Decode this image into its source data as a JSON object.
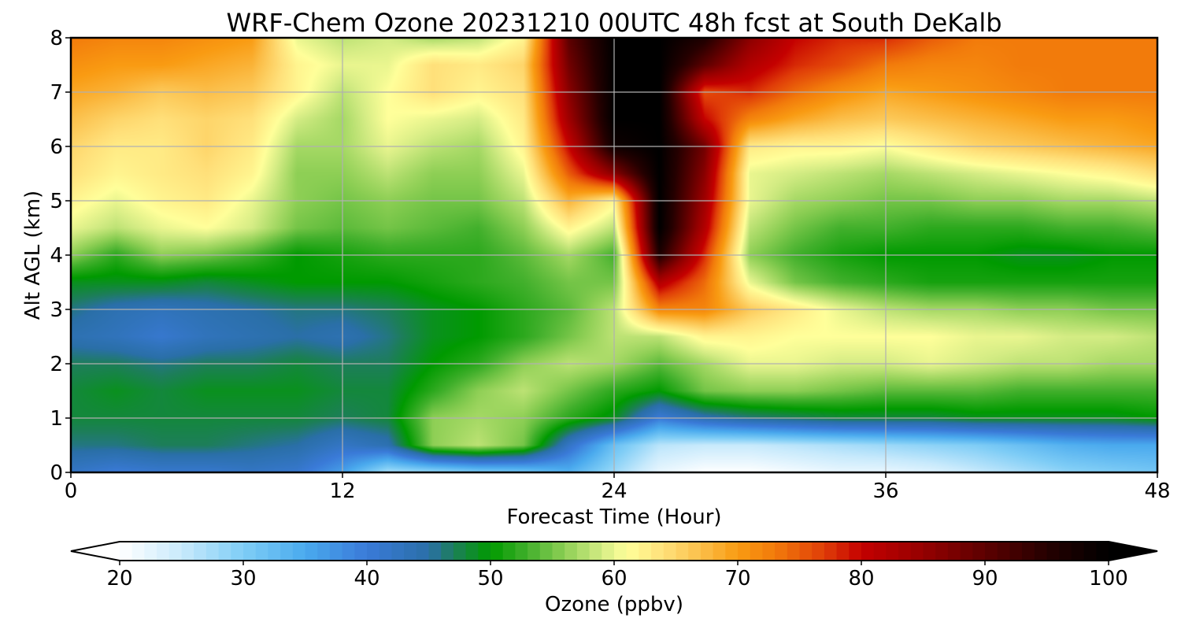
{
  "chart_data": {
    "type": "heatmap",
    "title": "WRF-Chem Ozone  20231210 00UTC 48h fcst at South DeKalb",
    "xlabel": "Forecast Time (Hour)",
    "ylabel": "Alt AGL (km)",
    "xlim": [
      0,
      48
    ],
    "ylim": [
      0,
      8
    ],
    "xticks": [
      0,
      12,
      24,
      36,
      48
    ],
    "yticks": [
      0,
      1,
      2,
      3,
      4,
      5,
      6,
      7,
      8
    ],
    "grid": true,
    "x": [
      0,
      2,
      4,
      6,
      8,
      10,
      12,
      14,
      16,
      18,
      20,
      22,
      24,
      26,
      28,
      30,
      32,
      34,
      36,
      38,
      40,
      42,
      44,
      46,
      48
    ],
    "y": [
      0,
      0.5,
      1,
      1.5,
      2,
      2.5,
      3,
      3.5,
      4,
      4.5,
      5,
      5.5,
      6,
      6.5,
      7,
      7.5,
      8
    ],
    "z": [
      [
        42,
        40,
        41,
        41,
        42,
        41,
        36,
        27,
        28,
        30,
        31,
        34,
        28,
        22,
        20,
        20,
        21,
        22,
        22,
        23,
        25,
        27,
        29,
        30,
        31
      ],
      [
        46,
        46,
        47,
        47,
        46,
        45,
        42,
        44,
        56,
        58,
        55,
        42,
        32,
        26,
        25,
        25,
        26,
        27,
        28,
        29,
        30,
        32,
        34,
        35,
        35
      ],
      [
        48,
        48,
        48,
        48,
        48,
        48,
        47,
        48,
        56,
        57,
        56,
        52,
        49,
        40,
        44,
        46,
        47,
        48,
        48,
        48,
        49,
        49,
        49,
        49,
        50
      ],
      [
        48,
        49,
        48,
        49,
        49,
        49,
        48,
        48,
        52,
        56,
        58,
        55,
        52,
        50,
        55,
        56,
        56,
        55,
        54,
        54,
        54,
        53,
        53,
        53,
        53
      ],
      [
        47,
        47,
        46,
        47,
        47,
        48,
        47,
        47,
        50,
        52,
        56,
        58,
        57,
        54,
        57,
        60,
        60,
        59,
        59,
        60,
        59,
        58,
        58,
        57,
        57
      ],
      [
        44,
        43,
        41,
        43,
        44,
        45,
        44,
        46,
        49,
        50,
        52,
        55,
        58,
        58,
        62,
        62,
        61,
        61,
        61,
        61,
        60,
        60,
        59,
        59,
        58
      ],
      [
        46,
        44,
        43,
        44,
        45,
        46,
        46,
        47,
        49,
        50,
        52,
        54,
        58,
        72,
        72,
        66,
        63,
        60,
        58,
        57,
        57,
        56,
        56,
        55,
        55
      ],
      [
        49,
        49,
        49,
        48,
        49,
        50,
        50,
        50,
        51,
        52,
        53,
        55,
        55,
        82,
        74,
        60,
        55,
        53,
        52,
        51,
        51,
        51,
        51,
        51,
        51
      ],
      [
        56,
        52,
        56,
        55,
        53,
        50,
        51,
        52,
        52,
        52,
        54,
        57,
        53,
        96,
        78,
        56,
        53,
        51,
        50,
        50,
        50,
        49,
        49,
        50,
        50
      ],
      [
        60,
        58,
        60,
        61,
        59,
        55,
        54,
        55,
        54,
        53,
        56,
        62,
        58,
        100,
        82,
        58,
        55,
        53,
        53,
        52,
        52,
        52,
        53,
        53,
        54
      ],
      [
        62,
        60,
        62,
        63,
        60,
        56,
        55,
        56,
        55,
        55,
        58,
        68,
        62,
        100,
        84,
        60,
        57,
        56,
        55,
        55,
        56,
        56,
        57,
        57,
        58
      ],
      [
        64,
        62,
        63,
        64,
        62,
        56,
        56,
        58,
        56,
        56,
        60,
        75,
        86,
        100,
        86,
        60,
        59,
        58,
        57,
        58,
        59,
        60,
        61,
        62,
        64
      ],
      [
        65,
        63,
        63,
        65,
        63,
        57,
        57,
        60,
        58,
        57,
        62,
        80,
        98,
        100,
        88,
        63,
        62,
        62,
        61,
        63,
        65,
        66,
        67,
        68,
        69
      ],
      [
        67,
        65,
        64,
        65,
        64,
        59,
        57,
        61,
        60,
        59,
        63,
        84,
        100,
        100,
        80,
        72,
        69,
        67,
        66,
        67,
        68,
        69,
        70,
        70,
        71
      ],
      [
        69,
        68,
        66,
        67,
        66,
        62,
        58,
        61,
        64,
        62,
        64,
        86,
        100,
        100,
        76,
        78,
        74,
        71,
        69,
        70,
        71,
        72,
        73,
        73,
        73
      ],
      [
        71,
        70,
        70,
        69,
        68,
        62,
        60,
        60,
        64,
        63,
        65,
        88,
        100,
        100,
        90,
        82,
        78,
        76,
        73,
        72,
        72,
        73,
        73,
        73,
        73
      ],
      [
        73,
        72,
        72,
        71,
        70,
        60,
        58,
        59,
        57,
        58,
        62,
        90,
        100,
        100,
        96,
        86,
        80,
        78,
        78,
        75,
        73,
        73,
        73,
        73,
        73
      ]
    ],
    "colorbar": {
      "label": "Ozone  (ppbv)",
      "min": 20,
      "max": 100,
      "ticks": [
        20,
        30,
        40,
        50,
        60,
        70,
        80,
        90,
        100
      ],
      "extend": "both",
      "stops": [
        {
          "value": 20,
          "color": "#ffffff"
        },
        {
          "value": 25,
          "color": "#c8eafc"
        },
        {
          "value": 30,
          "color": "#7fcdf6"
        },
        {
          "value": 35,
          "color": "#4aaaee"
        },
        {
          "value": 40,
          "color": "#3a7ad8"
        },
        {
          "value": 45,
          "color": "#2a6fa8"
        },
        {
          "value": 47,
          "color": "#1d7e5a"
        },
        {
          "value": 50,
          "color": "#009a00"
        },
        {
          "value": 53,
          "color": "#42b02c"
        },
        {
          "value": 56,
          "color": "#8ecf55"
        },
        {
          "value": 59,
          "color": "#d4ec84"
        },
        {
          "value": 61,
          "color": "#ffff9a"
        },
        {
          "value": 64,
          "color": "#ffe07a"
        },
        {
          "value": 67,
          "color": "#fbbf4a"
        },
        {
          "value": 70,
          "color": "#f99b12"
        },
        {
          "value": 73,
          "color": "#f27b0b"
        },
        {
          "value": 77,
          "color": "#e03d08"
        },
        {
          "value": 80,
          "color": "#c40000"
        },
        {
          "value": 85,
          "color": "#950000"
        },
        {
          "value": 90,
          "color": "#5c0000"
        },
        {
          "value": 95,
          "color": "#250000"
        },
        {
          "value": 100,
          "color": "#000000"
        }
      ]
    }
  }
}
